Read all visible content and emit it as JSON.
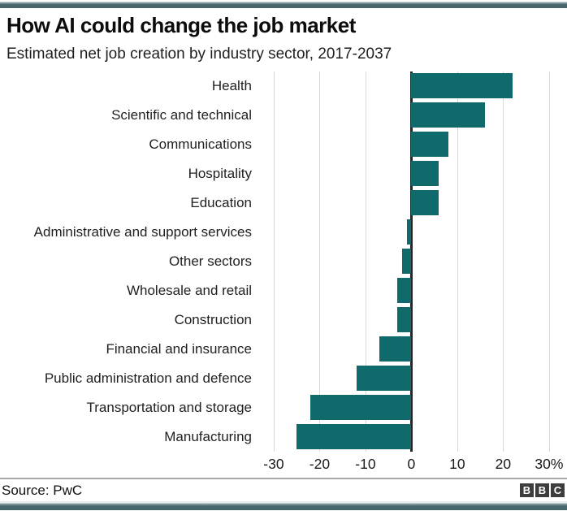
{
  "page": {
    "title": "How AI could change the job market",
    "subtitle": "Estimated net job creation by industry sector, 2017-2037",
    "source_label": "Source: PwC",
    "logo_letters": [
      "B",
      "B",
      "C"
    ]
  },
  "colors": {
    "bar": "#10696b",
    "gridline": "#d9d9d9",
    "zero_line": "#262626",
    "chrome_strip": "#47656d",
    "logo_block": "#3d3d3d"
  },
  "chart_data": {
    "type": "bar",
    "orientation": "horizontal",
    "title": "How AI could change the job market",
    "subtitle": "Estimated net job creation by industry sector, 2017-2037",
    "unit": "%",
    "categories": [
      "Health",
      "Scientific and technical",
      "Communications",
      "Hospitality",
      "Education",
      "Administrative and support services",
      "Other sectors",
      "Wholesale and retail",
      "Construction",
      "Financial and insurance",
      "Public administration and defence",
      "Transportation and storage",
      "Manufacturing"
    ],
    "values": [
      22,
      16,
      8,
      6,
      6,
      -1,
      -2,
      -3,
      -3,
      -7,
      -12,
      -22,
      -25
    ],
    "xlabel": "",
    "ylabel": "",
    "grid": true,
    "legend": false,
    "axis": {
      "range": [
        -33,
        32.5
      ],
      "ticks": [
        -30,
        -20,
        -10,
        0,
        10,
        20,
        30
      ],
      "tick_labels": [
        "-30",
        "-20",
        "-10",
        "0",
        "10",
        "20",
        "30%"
      ]
    }
  }
}
